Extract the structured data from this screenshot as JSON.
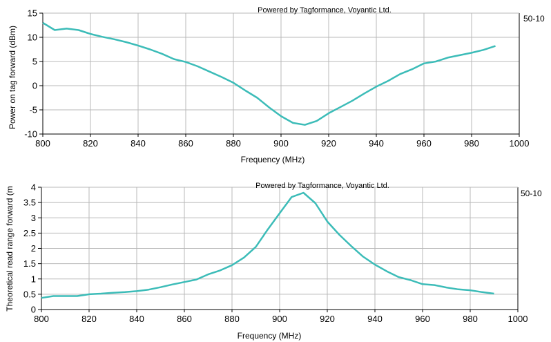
{
  "chart_data": [
    {
      "type": "line",
      "title": "",
      "credit": "Powered by Tagformance, Voyantic Ltd.",
      "side_label": "50-10",
      "xlabel": "Frequency (MHz)",
      "ylabel": "Power on tag forward (dBm)",
      "xlim": [
        800,
        1000
      ],
      "ylim": [
        -10,
        15
      ],
      "xticks": [
        800,
        820,
        840,
        860,
        880,
        900,
        920,
        940,
        960,
        980,
        1000
      ],
      "yticks": [
        -10,
        -5,
        0,
        5,
        10,
        15
      ],
      "grid": true,
      "color": "#3cbcb8",
      "x": [
        800,
        805,
        810,
        815,
        820,
        825,
        830,
        835,
        840,
        845,
        850,
        855,
        860,
        865,
        870,
        875,
        880,
        885,
        890,
        895,
        900,
        905,
        910,
        915,
        920,
        925,
        930,
        935,
        940,
        945,
        950,
        955,
        960,
        965,
        970,
        975,
        980,
        985,
        990
      ],
      "y": [
        13,
        11.5,
        11.8,
        11.5,
        10.7,
        10.1,
        9.6,
        9.0,
        8.3,
        7.5,
        6.6,
        5.5,
        4.9,
        4.0,
        2.9,
        1.8,
        0.6,
        -1.0,
        -2.5,
        -4.5,
        -6.3,
        -7.7,
        -8.1,
        -7.3,
        -5.7,
        -4.4,
        -3.1,
        -1.6,
        -0.2,
        1.0,
        2.4,
        3.4,
        4.6,
        5.0,
        5.8,
        6.3,
        6.8,
        7.4,
        8.2
      ]
    },
    {
      "type": "line",
      "title": "",
      "credit": "Powered by Tagformance, Voyantic Ltd.",
      "side_label": "50-10",
      "xlabel": "Frequency (MHz)",
      "ylabel": "Theoretical read range forward (m",
      "xlim": [
        800,
        1000
      ],
      "ylim": [
        0,
        4
      ],
      "xticks": [
        800,
        820,
        840,
        860,
        880,
        900,
        920,
        940,
        960,
        980,
        1000
      ],
      "yticks": [
        0,
        0.5,
        1,
        1.5,
        2,
        2.5,
        3,
        3.5,
        4
      ],
      "grid": true,
      "color": "#3cbcb8",
      "x": [
        800,
        805,
        810,
        815,
        820,
        825,
        830,
        835,
        840,
        845,
        850,
        855,
        860,
        865,
        870,
        875,
        880,
        885,
        890,
        895,
        900,
        905,
        910,
        915,
        920,
        925,
        930,
        935,
        940,
        945,
        950,
        955,
        960,
        965,
        970,
        975,
        980,
        985,
        990
      ],
      "y": [
        0.38,
        0.44,
        0.44,
        0.44,
        0.5,
        0.52,
        0.55,
        0.57,
        0.6,
        0.65,
        0.73,
        0.82,
        0.9,
        0.98,
        1.15,
        1.28,
        1.45,
        1.7,
        2.05,
        2.62,
        3.15,
        3.68,
        3.82,
        3.48,
        2.88,
        2.45,
        2.08,
        1.73,
        1.47,
        1.25,
        1.06,
        0.96,
        0.83,
        0.8,
        0.72,
        0.66,
        0.63,
        0.57,
        0.52
      ]
    }
  ]
}
